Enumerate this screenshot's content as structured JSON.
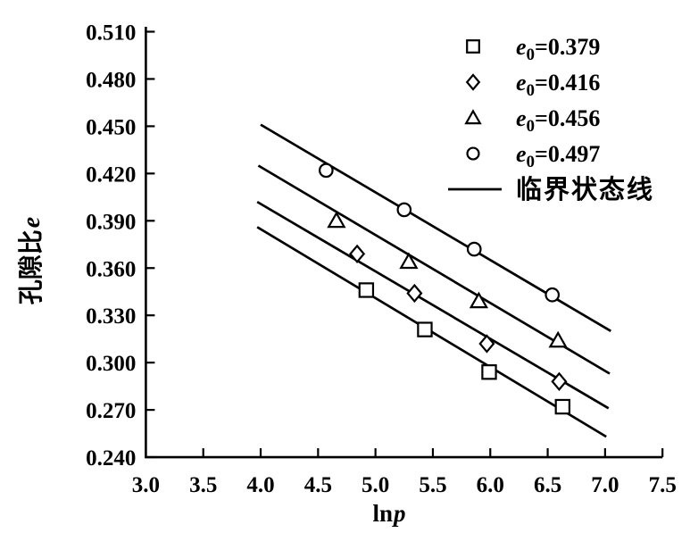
{
  "chart_data": {
    "type": "scatter",
    "title": "",
    "xlabel": {
      "upright": "ln",
      "italic": "p",
      "full": "lnp"
    },
    "ylabel": {
      "upright": "孔隙比",
      "italic": "e",
      "full": "孔隙比e"
    },
    "xlim": [
      3.0,
      7.5
    ],
    "ylim": [
      0.24,
      0.51
    ],
    "x_ticks": [
      "3.0",
      "3.5",
      "4.0",
      "4.5",
      "5.0",
      "5.5",
      "6.0",
      "6.5",
      "7.0",
      "7.5"
    ],
    "y_ticks": [
      "0.240",
      "0.270",
      "0.300",
      "0.330",
      "0.360",
      "0.390",
      "0.420",
      "0.450",
      "0.480",
      "0.510"
    ],
    "grid": false,
    "legend_position": "upper-right-inside",
    "series": [
      {
        "name": "e0=0.379",
        "marker": "square",
        "points": [
          [
            4.92,
            0.346
          ],
          [
            5.43,
            0.321
          ],
          [
            5.99,
            0.294
          ],
          [
            6.63,
            0.272
          ]
        ]
      },
      {
        "name": "e0=0.416",
        "marker": "diamond",
        "points": [
          [
            4.84,
            0.369
          ],
          [
            5.34,
            0.344
          ],
          [
            5.97,
            0.312
          ],
          [
            6.6,
            0.288
          ]
        ]
      },
      {
        "name": "e0=0.456",
        "marker": "triangle",
        "points": [
          [
            4.66,
            0.39
          ],
          [
            5.29,
            0.364
          ],
          [
            5.9,
            0.339
          ],
          [
            6.59,
            0.314
          ]
        ]
      },
      {
        "name": "e0=0.497",
        "marker": "circle",
        "points": [
          [
            4.57,
            0.422
          ],
          [
            5.25,
            0.397
          ],
          [
            5.86,
            0.372
          ],
          [
            6.54,
            0.343
          ]
        ]
      }
    ],
    "critical_state_lines": [
      {
        "series": "e0=0.497",
        "from": [
          4.0,
          0.451
        ],
        "to": [
          7.05,
          0.32
        ]
      },
      {
        "series": "e0=0.456",
        "from": [
          3.98,
          0.425
        ],
        "to": [
          7.04,
          0.293
        ]
      },
      {
        "series": "e0=0.416",
        "from": [
          3.97,
          0.402
        ],
        "to": [
          7.03,
          0.271
        ]
      },
      {
        "series": "e0=0.379",
        "from": [
          3.97,
          0.386
        ],
        "to": [
          7.01,
          0.253
        ]
      }
    ],
    "legend": {
      "items": [
        {
          "marker": "square",
          "e_symbol": "e",
          "e_sub": "0",
          "value": "=0.379",
          "label": "e0=0.379"
        },
        {
          "marker": "diamond",
          "e_symbol": "e",
          "e_sub": "0",
          "value": "=0.416",
          "label": "e0=0.416"
        },
        {
          "marker": "triangle",
          "e_symbol": "e",
          "e_sub": "0",
          "value": "=0.456",
          "label": "e0=0.456"
        },
        {
          "marker": "circle",
          "e_symbol": "e",
          "e_sub": "0",
          "value": "=0.497",
          "label": "e0=0.497"
        },
        {
          "marker": "line",
          "label": "临界状态线"
        }
      ]
    },
    "colors": {
      "ink": "#000000",
      "background": "#ffffff"
    }
  }
}
